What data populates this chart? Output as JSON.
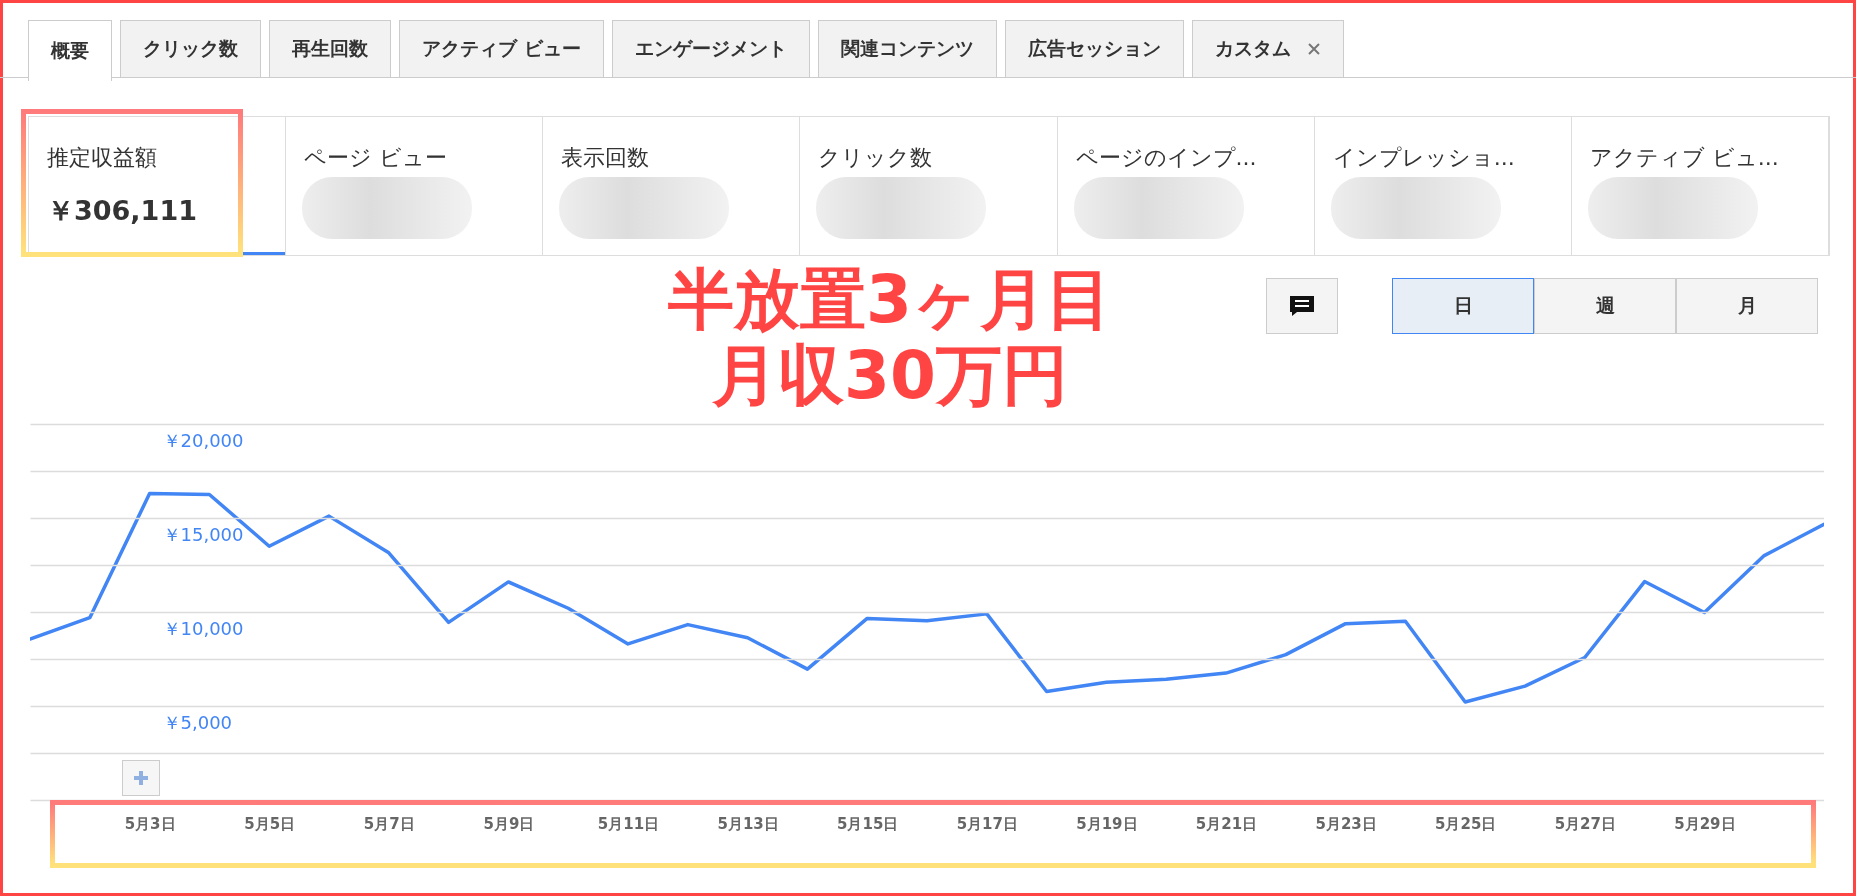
{
  "chart_data": {
    "type": "line",
    "title": "半放置3ヶ月目",
    "subtitle": "月収30万円",
    "categories": [
      null,
      null,
      "5月3日",
      null,
      "5月5日",
      null,
      "5月7日",
      null,
      "5月9日",
      null,
      "5月11日",
      null,
      "5月13日",
      null,
      "5月15日",
      null,
      "5月17日",
      null,
      "5月19日",
      null,
      "5月21日",
      null,
      "5月23日",
      null,
      "5月25日",
      null,
      "5月27日",
      null,
      "5月29日",
      null,
      null
    ],
    "series": [
      {
        "color": "#4285f4",
        "values": [
          8560,
          9700,
          16300,
          16250,
          13500,
          15100,
          13150,
          9450,
          11600,
          10200,
          8300,
          9330,
          8630,
          6960,
          9660,
          9540,
          9900,
          5770,
          6260,
          6420,
          6750,
          7730,
          9380,
          9510,
          5210,
          6060,
          7580,
          11620,
          9970,
          13000,
          14660
        ]
      }
    ],
    "ylim": [
      0,
      20000
    ],
    "yticks": [
      {
        "value": 0,
        "label": null
      },
      {
        "value": 2500,
        "label": null
      },
      {
        "value": 5000,
        "label": "￥5,000"
      },
      {
        "value": 7500,
        "label": null
      },
      {
        "value": 10000,
        "label": "￥10,000"
      },
      {
        "value": 12500,
        "label": null
      },
      {
        "value": 15000,
        "label": "￥15,000"
      },
      {
        "value": 17500,
        "label": null
      },
      {
        "value": 20000,
        "label": "￥20,000"
      }
    ],
    "grid": true,
    "annotations": [
      "概要",
      "クリック数",
      "再生回数",
      "アクティブ ビュー",
      "エンゲージメント",
      "関連コンテンツ",
      "広告セッション",
      "カスタム",
      "推定収益額",
      "ページ ビュー",
      "表示回数",
      "クリック数",
      "ページのインプ...",
      "インプレッショ...",
      "アクティブ ビュ...",
      "￥306,111",
      "日",
      "週",
      "月"
    ]
  }
}
